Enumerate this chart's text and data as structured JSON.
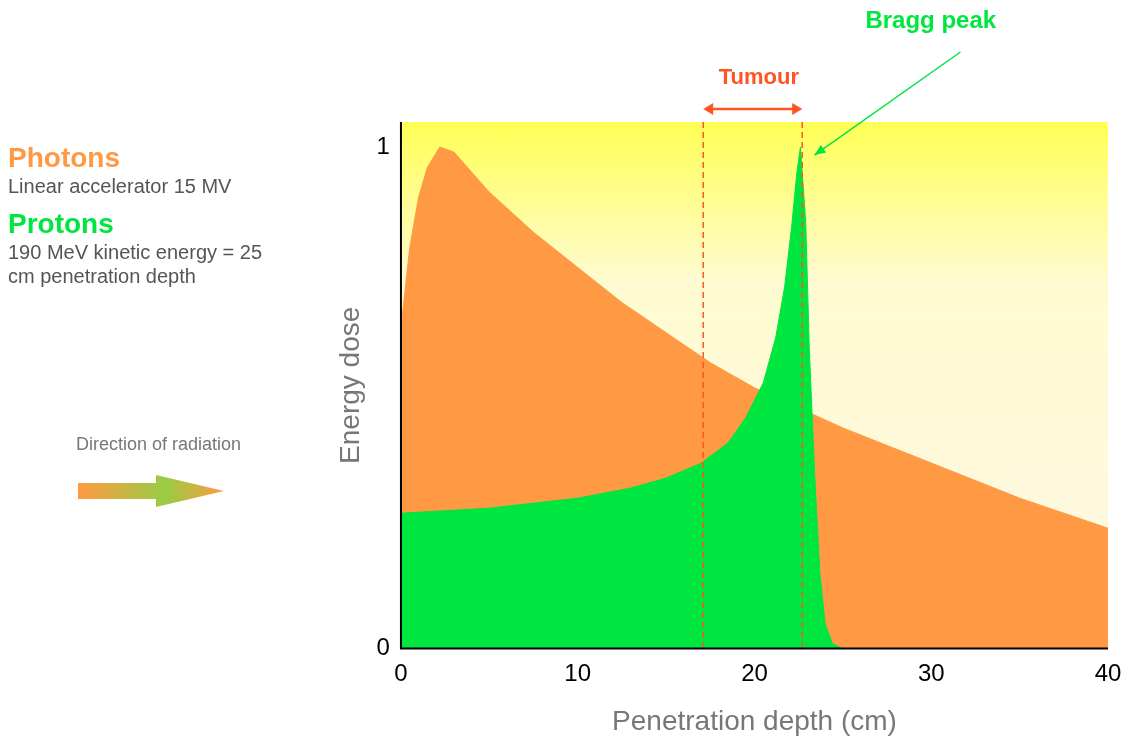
{
  "chart_data": {
    "type": "area",
    "xlabel": "Penetration depth (cm)",
    "ylabel": "Energy dose",
    "xlim": [
      0,
      40
    ],
    "xticks": [
      0,
      10,
      20,
      30,
      40
    ],
    "ylim": [
      0,
      1.05
    ],
    "yticks": [
      0,
      1
    ],
    "grid": false,
    "legend": "left",
    "marker": "none",
    "series": [
      {
        "name": "Photons",
        "color": "#ff9944",
        "x": [
          0,
          0.5,
          1,
          1.5,
          2.2,
          3,
          4,
          5,
          7.5,
          10,
          12.5,
          15,
          17.5,
          20,
          22.5,
          25,
          30,
          35,
          40
        ],
        "values": [
          0.64,
          0.8,
          0.9,
          0.96,
          1.0,
          0.99,
          0.95,
          0.91,
          0.83,
          0.76,
          0.69,
          0.63,
          0.57,
          0.52,
          null,
          0.44,
          0.37,
          0.3,
          0.24
        ]
      },
      {
        "name": "Protons",
        "color": "#00e640",
        "x": [
          0,
          5,
          10,
          13,
          15,
          17,
          18.5,
          19.5,
          20.5,
          21.2,
          21.7,
          22.1,
          22.4,
          22.6,
          22.9,
          23.1,
          23.4,
          23.7,
          24,
          24.4,
          25
        ],
        "values": [
          0.27,
          0.28,
          0.3,
          0.32,
          0.34,
          0.37,
          0.41,
          0.46,
          0.53,
          0.62,
          0.72,
          0.84,
          0.95,
          1.0,
          0.85,
          0.6,
          0.35,
          0.15,
          0.05,
          0.01,
          0
        ]
      }
    ],
    "ref_lines": [
      {
        "axis": "x",
        "value": 17.1,
        "color": "#ff5522",
        "line_style": "dashed"
      },
      {
        "axis": "x",
        "value": 22.7,
        "color": "#ff5522",
        "line_style": "dashed"
      }
    ],
    "annotations": [
      "Linear accelerator 15 MV",
      "190 MeV kinetic energy = 25 cm penetration depth",
      "Direction of radiation",
      "Tumour",
      "Bragg peak"
    ]
  }
}
